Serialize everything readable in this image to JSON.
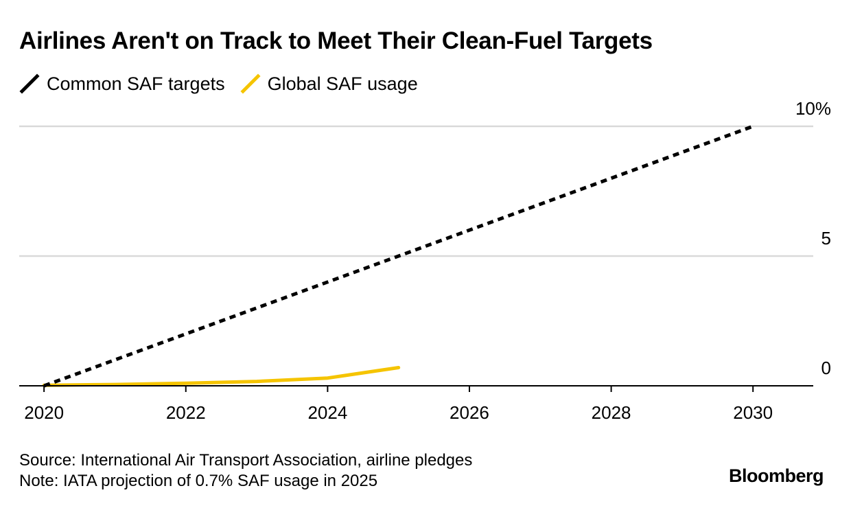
{
  "chart_data": {
    "type": "line",
    "title": "Airlines Aren't on Track to Meet Their Clean-Fuel Targets",
    "xlabel": "",
    "ylabel": "",
    "xlim": [
      2019.65,
      2030.85
    ],
    "ylim": [
      0,
      10
    ],
    "x_ticks": [
      2020,
      2022,
      2024,
      2026,
      2028,
      2030
    ],
    "y_ticks": [
      {
        "value": 0,
        "label": "0"
      },
      {
        "value": 5,
        "label": "5"
      },
      {
        "value": 10,
        "label": "10%"
      }
    ],
    "grid": true,
    "legend_position": "top-left",
    "series": [
      {
        "name": "Common SAF targets",
        "style": "dashed",
        "color": "#000000",
        "x": [
          2020,
          2030
        ],
        "y": [
          0,
          10
        ]
      },
      {
        "name": "Global SAF usage",
        "style": "solid",
        "color": "#F5C400",
        "x": [
          2020,
          2021,
          2022,
          2023,
          2024,
          2025
        ],
        "y": [
          0.02,
          0.05,
          0.1,
          0.17,
          0.3,
          0.7
        ]
      }
    ]
  },
  "footer": {
    "source": "Source: International Air Transport Association, airline pledges",
    "note": "Note: IATA projection of 0.7% SAF usage in 2025"
  },
  "brand": "Bloomberg"
}
